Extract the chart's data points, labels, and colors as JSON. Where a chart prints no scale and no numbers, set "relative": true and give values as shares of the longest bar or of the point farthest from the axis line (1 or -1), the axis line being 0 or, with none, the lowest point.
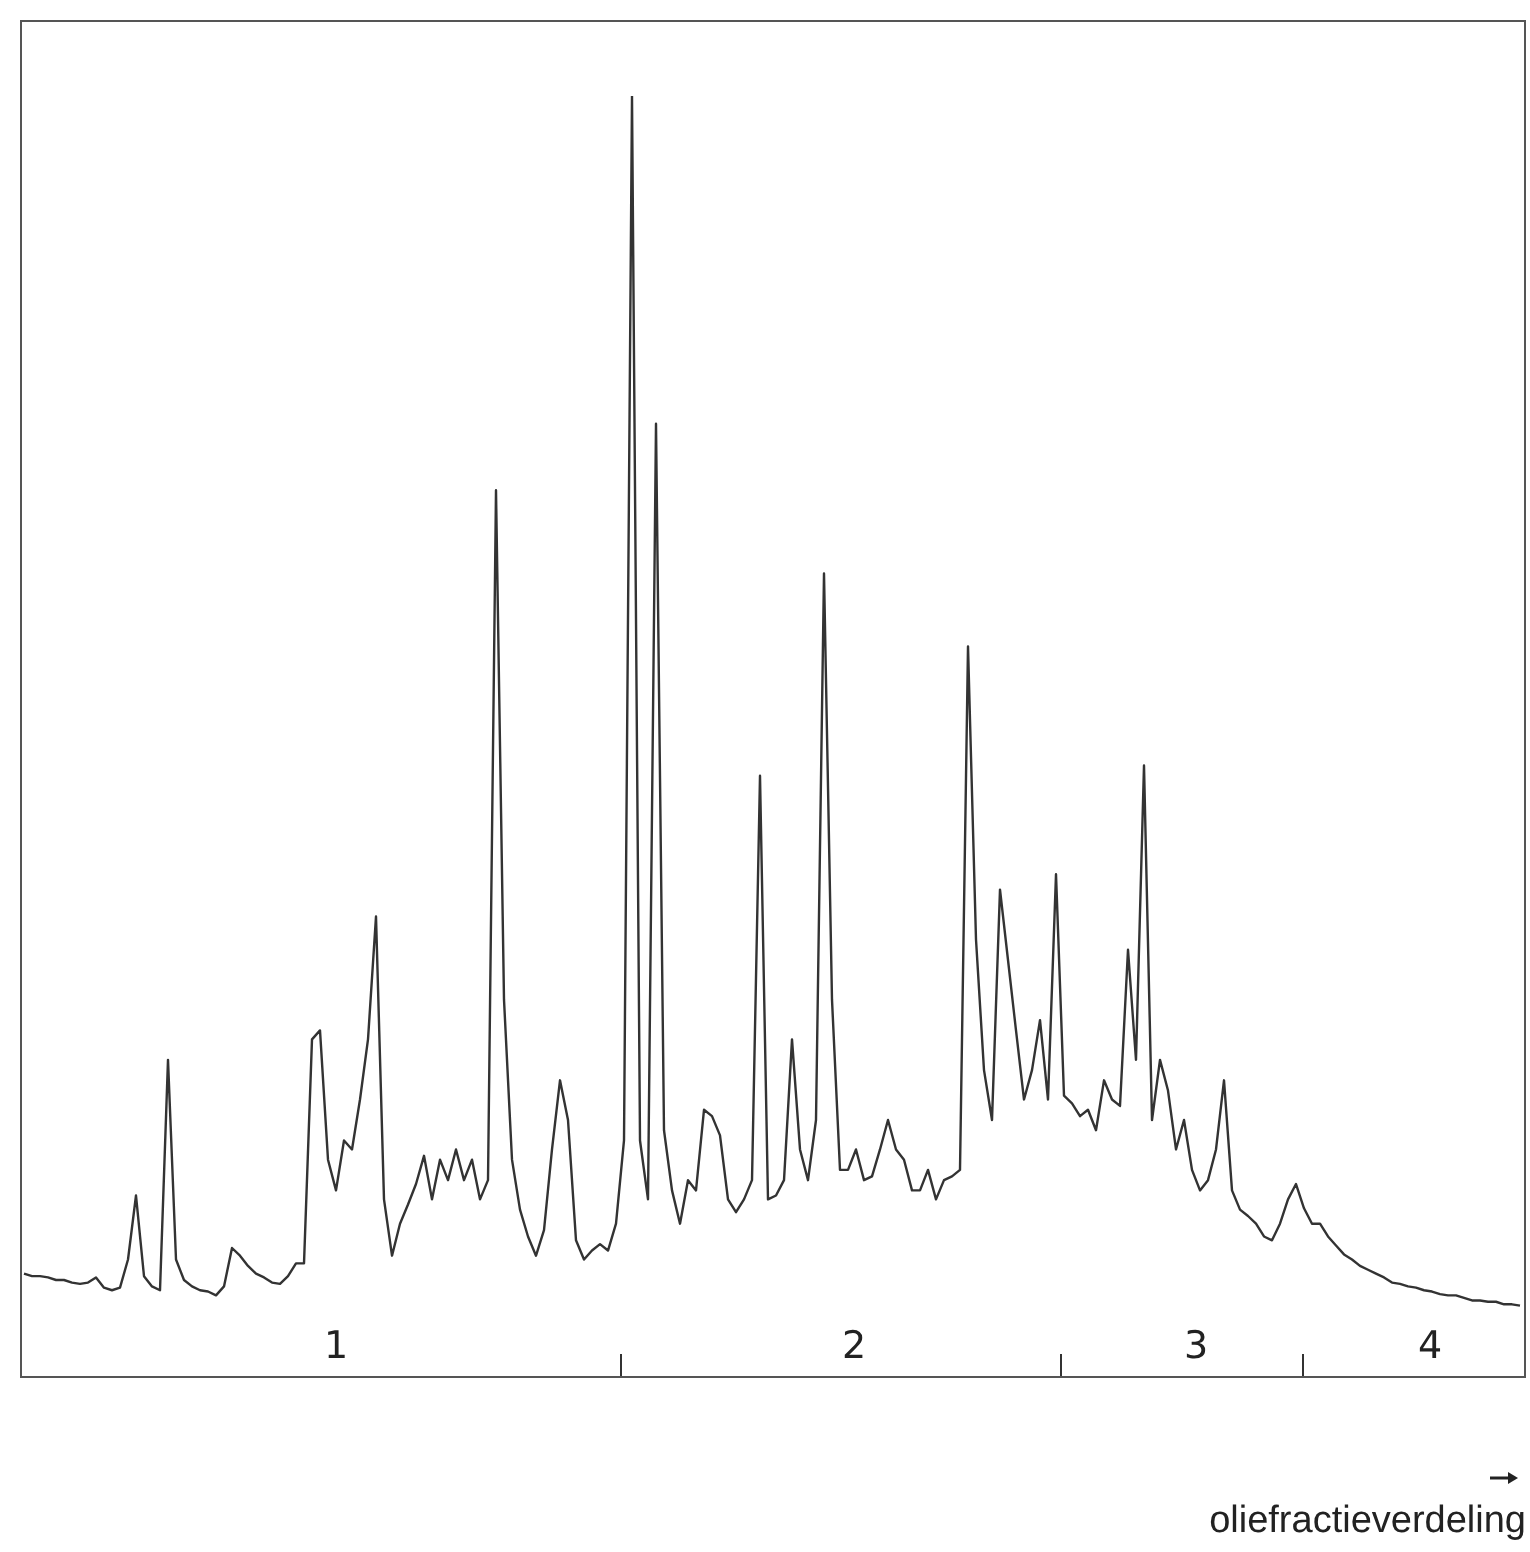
{
  "chart_data": {
    "type": "line",
    "relative": true,
    "xlabel": "oliefractieverdeling",
    "annotations": [
      "1",
      "2",
      "3",
      "4"
    ],
    "color": "#333333",
    "marker": "none",
    "categories": [
      null,
      null,
      null,
      null,
      null,
      null,
      null,
      null,
      null,
      null,
      null,
      null,
      null,
      null,
      null,
      null,
      null,
      null,
      null,
      null,
      null,
      null,
      null,
      null,
      null,
      null,
      null,
      null,
      null,
      null,
      null,
      null,
      null,
      null,
      null,
      null,
      null,
      null,
      null,
      null,
      null,
      null,
      null,
      null,
      null,
      null,
      null,
      null,
      null,
      null,
      null,
      null,
      null,
      null,
      null,
      null,
      null,
      null,
      null,
      null,
      null,
      null,
      null,
      null,
      null,
      null,
      null,
      null,
      null,
      null,
      null,
      null,
      null,
      null,
      null,
      null,
      null,
      null,
      null,
      null,
      null,
      null,
      null,
      null,
      null,
      null,
      null,
      null,
      null,
      null,
      null,
      null,
      null,
      null,
      null,
      null,
      null,
      null,
      null,
      null,
      null,
      null,
      null,
      null,
      null,
      null,
      null,
      null,
      null,
      null,
      null,
      null,
      null,
      null,
      null,
      null,
      null,
      null,
      null,
      null,
      null,
      null,
      null,
      null,
      null,
      null,
      null,
      null,
      null,
      null,
      null,
      null,
      null,
      null,
      null,
      null,
      null,
      null,
      null,
      null,
      null,
      null,
      null,
      null,
      null,
      null,
      null,
      null,
      null,
      null,
      null,
      null,
      null,
      null,
      null,
      null,
      null,
      null,
      null,
      null,
      null,
      null,
      null,
      null,
      null,
      null,
      null,
      null,
      null,
      null,
      null,
      null,
      null,
      null,
      null,
      null,
      null,
      null,
      null,
      null,
      null,
      null,
      null,
      null,
      null,
      null,
      null,
      null
    ],
    "values": [
      0.08,
      0.078,
      0.078,
      0.077,
      0.075,
      0.075,
      0.073,
      0.072,
      0.073,
      0.077,
      0.069,
      0.067,
      0.069,
      0.091,
      0.141,
      0.078,
      0.07,
      0.067,
      0.247,
      0.091,
      0.075,
      0.07,
      0.067,
      0.066,
      0.063,
      0.07,
      0.1,
      0.094,
      0.086,
      0.08,
      0.077,
      0.073,
      0.072,
      0.078,
      0.088,
      0.088,
      0.263,
      0.27,
      0.169,
      0.145,
      0.184,
      0.177,
      0.216,
      0.263,
      0.359,
      0.138,
      0.094,
      0.119,
      0.134,
      0.15,
      0.172,
      0.138,
      0.169,
      0.153,
      0.177,
      0.153,
      0.169,
      0.138,
      0.153,
      0.692,
      0.294,
      0.169,
      0.13,
      0.109,
      0.094,
      0.114,
      0.177,
      0.231,
      0.2,
      0.106,
      0.091,
      0.098,
      0.103,
      0.098,
      0.119,
      0.184,
      1,
      0.184,
      0.138,
      0.744,
      0.192,
      0.145,
      0.119,
      0.153,
      0.145,
      0.208,
      0.203,
      0.188,
      0.138,
      0.128,
      0.138,
      0.153,
      0.469,
      0.138,
      0.141,
      0.153,
      0.263,
      0.177,
      0.153,
      0.2,
      0.627,
      0.294,
      0.161,
      0.161,
      0.177,
      0.153,
      0.156,
      0.177,
      0.2,
      0.177,
      0.169,
      0.145,
      0.145,
      0.161,
      0.138,
      0.153,
      0.156,
      0.161,
      0.57,
      0.341,
      0.239,
      0.2,
      0.38,
      0.325,
      0.27,
      0.216,
      0.239,
      0.278,
      0.216,
      0.392,
      0.219,
      0.213,
      0.203,
      0.208,
      0.192,
      0.231,
      0.216,
      0.211,
      0.333,
      0.247,
      0.477,
      0.2,
      0.247,
      0.223,
      0.177,
      0.2,
      0.161,
      0.145,
      0.153,
      0.177,
      0.231,
      0.145,
      0.13,
      0.125,
      0.119,
      0.109,
      0.106,
      0.119,
      0.138,
      0.15,
      0.131,
      0.119,
      0.119,
      0.109,
      0.102,
      0.095,
      0.091,
      0.086,
      0.083,
      0.08,
      0.077,
      0.073,
      0.072,
      0.07,
      0.069,
      0.067,
      0.066,
      0.064,
      0.063,
      0.063,
      0.061,
      0.059,
      0.059,
      0.058,
      0.058,
      0.056,
      0.056,
      0.055
    ]
  }
}
